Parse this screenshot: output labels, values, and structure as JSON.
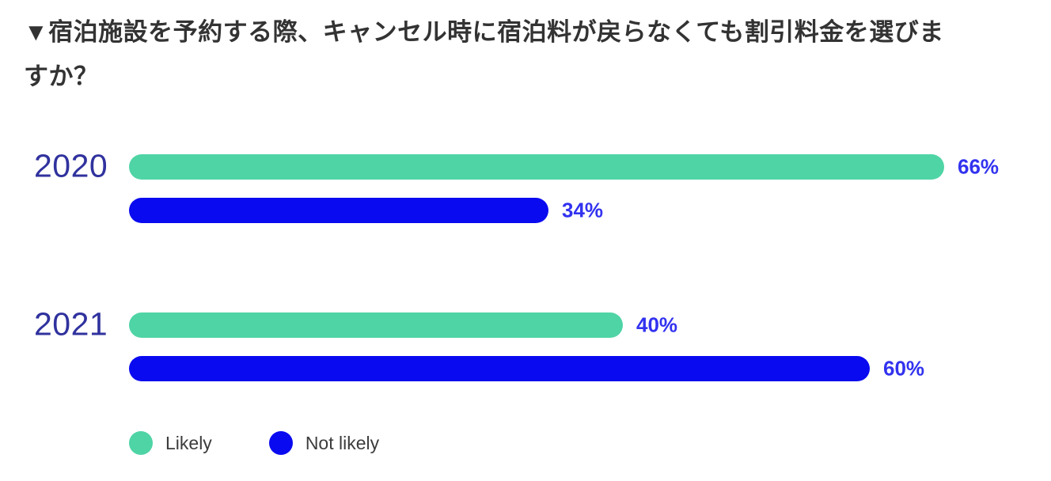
{
  "chart_data": {
    "type": "bar",
    "orientation": "horizontal",
    "title": "▼宿泊施設を予約する際、キャンセル時に宿泊料が戻らなくても割引料金を選びますか？",
    "categories": [
      "2020",
      "2021"
    ],
    "series": [
      {
        "name": "Likely",
        "color": "#4FD4A5",
        "values": [
          66,
          40
        ]
      },
      {
        "name": "Not likely",
        "color": "#0A0AF0",
        "values": [
          34,
          60
        ]
      }
    ],
    "value_suffix": "%",
    "value_labels": [
      [
        "66%",
        "34%"
      ],
      [
        "40%",
        "60%"
      ]
    ],
    "xlim": [
      0,
      100
    ],
    "grid": false,
    "legend_position": "bottom-left",
    "background": "#ffffff"
  },
  "colors": {
    "title_text": "#333333",
    "category_label": "#30329E",
    "value_label": "#3232F0",
    "legend_text": "#3C3C3C"
  }
}
